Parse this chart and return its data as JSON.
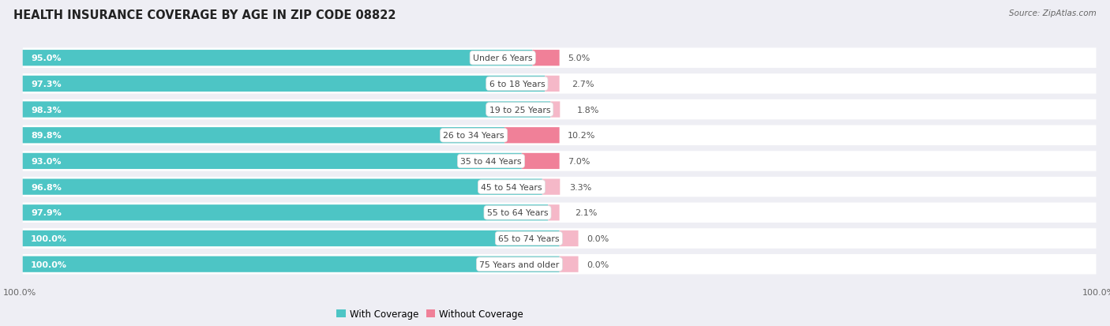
{
  "title": "HEALTH INSURANCE COVERAGE BY AGE IN ZIP CODE 08822",
  "source": "Source: ZipAtlas.com",
  "categories": [
    "Under 6 Years",
    "6 to 18 Years",
    "19 to 25 Years",
    "26 to 34 Years",
    "35 to 44 Years",
    "45 to 54 Years",
    "55 to 64 Years",
    "65 to 74 Years",
    "75 Years and older"
  ],
  "with_coverage": [
    95.0,
    97.3,
    98.3,
    89.8,
    93.0,
    96.8,
    97.9,
    100.0,
    100.0
  ],
  "without_coverage": [
    5.0,
    2.7,
    1.8,
    10.2,
    7.0,
    3.3,
    2.1,
    0.0,
    0.0
  ],
  "color_with": "#4dc5c5",
  "color_without": "#f08098",
  "color_without_light": "#f5b8c8",
  "bg_color": "#eeeef4",
  "bar_bg": "#ffffff",
  "title_fontsize": 10.5,
  "label_fontsize": 8,
  "tick_fontsize": 8,
  "legend_fontsize": 8.5,
  "source_fontsize": 7.5
}
